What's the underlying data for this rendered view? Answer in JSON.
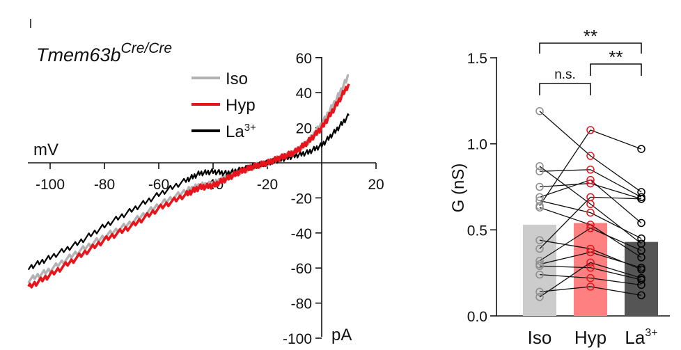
{
  "chart_data": [
    {
      "type": "line",
      "title": "Tmem63bCre/Cre",
      "title_main": "Tmem63b",
      "title_sup": "Cre/Cre",
      "xlabel": "mV",
      "ylabel": "pA",
      "xlim": [
        -108,
        20
      ],
      "ylim": [
        -100,
        60
      ],
      "x_ticks": [
        -100,
        -80,
        -60,
        -40,
        -20,
        20
      ],
      "y_ticks": [
        -100,
        -80,
        -60,
        -40,
        -20,
        20,
        40,
        60
      ],
      "legend_position": "top-left",
      "series": [
        {
          "name": "Iso",
          "color": "#b3b3b3",
          "x": [
            -108,
            -100,
            -90,
            -80,
            -70,
            -60,
            -50,
            -45,
            -40,
            -35,
            -30,
            -25,
            -20,
            -15,
            -10,
            -5,
            0,
            5,
            10
          ],
          "y": [
            -67,
            -61,
            -51,
            -42,
            -34,
            -24,
            -16,
            -13,
            -12,
            -8,
            -5,
            -2,
            0,
            3,
            6,
            12,
            22,
            35,
            50
          ]
        },
        {
          "name": "Hyp",
          "color": "#e8141c",
          "x": [
            -108,
            -100,
            -90,
            -80,
            -70,
            -60,
            -50,
            -45,
            -40,
            -35,
            -30,
            -25,
            -20,
            -15,
            -10,
            -5,
            0,
            5,
            10
          ],
          "y": [
            -71,
            -64,
            -54,
            -44,
            -36,
            -26,
            -18,
            -14,
            -13,
            -9,
            -5,
            -2,
            0,
            3,
            6,
            12,
            20,
            32,
            45
          ]
        },
        {
          "name": "La",
          "name_sup": "3+",
          "color": "#000000",
          "x": [
            -108,
            -100,
            -90,
            -80,
            -70,
            -60,
            -50,
            -45,
            -40,
            -35,
            -30,
            -25,
            -20,
            -15,
            -10,
            -5,
            0,
            5,
            10
          ],
          "y": [
            -60,
            -54,
            -46,
            -36,
            -27,
            -18,
            -10,
            -6,
            -5,
            -6,
            -4,
            -2,
            0,
            2,
            4,
            6,
            10,
            18,
            27
          ]
        }
      ]
    },
    {
      "type": "bar",
      "ylabel": "G (nS)",
      "ylim": [
        0,
        1.5
      ],
      "y_ticks": [
        "0.0",
        "0.5",
        "1.0",
        "1.5"
      ],
      "categories": [
        {
          "label": "Iso",
          "sup": ""
        },
        {
          "label": "Hyp",
          "sup": ""
        },
        {
          "label": "La",
          "sup": "3+"
        }
      ],
      "bar_colors": [
        "#cccccc",
        "#ff8080",
        "#555555"
      ],
      "point_colors": [
        "#8c8c8c",
        "#e8141c",
        "#000000"
      ],
      "values": [
        0.53,
        0.54,
        0.43
      ],
      "paired_points": [
        [
          1.19,
          0.93,
          0.72
        ],
        [
          0.87,
          0.65,
          0.42
        ],
        [
          0.84,
          0.85,
          0.69
        ],
        [
          0.75,
          0.77,
          0.68
        ],
        [
          0.69,
          0.79,
          0.54
        ],
        [
          0.67,
          0.6,
          0.45
        ],
        [
          0.64,
          1.08,
          0.97
        ],
        [
          0.63,
          0.53,
          0.34
        ],
        [
          0.44,
          0.39,
          0.27
        ],
        [
          0.39,
          0.69,
          0.68
        ],
        [
          0.32,
          0.51,
          0.38
        ],
        [
          0.3,
          0.37,
          0.28
        ],
        [
          0.29,
          0.28,
          0.21
        ],
        [
          0.24,
          0.22,
          0.18
        ],
        [
          0.14,
          0.17,
          0.12
        ],
        [
          0.11,
          0.31,
          0.22
        ]
      ],
      "significance": [
        {
          "from": 0,
          "to": 1,
          "label": "n.s."
        },
        {
          "from": 1,
          "to": 2,
          "label": "**"
        },
        {
          "from": 0,
          "to": 2,
          "label": "**"
        }
      ]
    }
  ]
}
